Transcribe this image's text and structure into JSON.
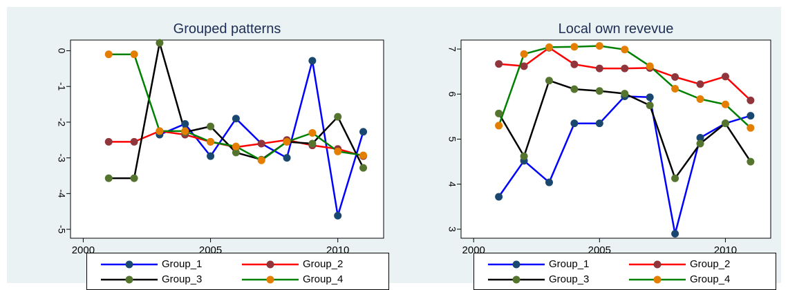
{
  "chart_data": [
    {
      "type": "line",
      "title": "Grouped patterns",
      "xlabel": "",
      "ylabel": "",
      "xlim": [
        1999.5,
        2011.8
      ],
      "ylim": [
        -5.25,
        0.3
      ],
      "x_ticks": [
        2000,
        2005,
        2010
      ],
      "y_ticks": [
        0,
        -1,
        -2,
        -3,
        -4,
        -5
      ],
      "y_tick_labels_rotated": true,
      "grid": false,
      "legend_position": "bottom",
      "x": [
        2001,
        2002,
        2003,
        2004,
        2005,
        2006,
        2007,
        2008,
        2009,
        2010,
        2011
      ],
      "series": [
        {
          "name": "Group_1",
          "line_color": "#0000ff",
          "marker_color": "#1a476f",
          "values": [
            null,
            null,
            -2.35,
            -2.05,
            -2.95,
            -1.9,
            -2.6,
            -3.0,
            -0.28,
            -4.62,
            -2.27
          ]
        },
        {
          "name": "Group_2",
          "line_color": "#ff0000",
          "marker_color": "#90353b",
          "values": [
            -2.55,
            -2.55,
            -2.25,
            -2.35,
            -2.55,
            -2.7,
            -2.6,
            -2.5,
            -2.65,
            -2.75,
            -2.95
          ]
        },
        {
          "name": "Group_3",
          "line_color": "#000000",
          "marker_color": "#55752f",
          "values": [
            -3.57,
            -3.57,
            0.22,
            -2.28,
            -2.12,
            -2.85,
            -3.05,
            -2.55,
            -2.6,
            -1.85,
            -3.28
          ]
        },
        {
          "name": "Group_4",
          "line_color": "#008000",
          "marker_color": "#e37e00",
          "values": [
            -0.1,
            -0.1,
            -2.25,
            -2.25,
            -2.55,
            -2.68,
            -3.07,
            -2.55,
            -2.3,
            -2.82,
            -2.93
          ]
        }
      ]
    },
    {
      "type": "line",
      "title": "Local own revevue",
      "xlabel": "",
      "ylabel": "",
      "xlim": [
        1999.5,
        2011.8
      ],
      "ylim": [
        2.8,
        7.2
      ],
      "x_ticks": [
        2000,
        2005,
        2010
      ],
      "y_ticks": [
        3,
        4,
        5,
        6,
        7
      ],
      "y_tick_labels_rotated": true,
      "grid": false,
      "legend_position": "bottom",
      "x": [
        2001,
        2002,
        2003,
        2004,
        2005,
        2006,
        2007,
        2008,
        2009,
        2010,
        2011
      ],
      "series": [
        {
          "name": "Group_1",
          "line_color": "#0000ff",
          "marker_color": "#1a476f",
          "values": [
            3.72,
            4.52,
            4.04,
            5.35,
            5.35,
            5.95,
            5.93,
            2.9,
            5.03,
            5.35,
            5.52
          ]
        },
        {
          "name": "Group_2",
          "line_color": "#ff0000",
          "marker_color": "#90353b",
          "values": [
            6.67,
            6.62,
            7.03,
            6.66,
            6.57,
            6.57,
            6.58,
            6.38,
            6.22,
            6.39,
            5.86
          ]
        },
        {
          "name": "Group_3",
          "line_color": "#000000",
          "marker_color": "#55752f",
          "values": [
            5.57,
            4.62,
            6.3,
            6.11,
            6.07,
            6.01,
            5.75,
            4.13,
            4.9,
            5.35,
            4.5
          ]
        },
        {
          "name": "Group_4",
          "line_color": "#008000",
          "marker_color": "#e37e00",
          "values": [
            5.3,
            6.89,
            7.04,
            7.05,
            7.07,
            6.99,
            6.62,
            6.12,
            5.89,
            5.77,
            5.25
          ]
        }
      ]
    }
  ]
}
